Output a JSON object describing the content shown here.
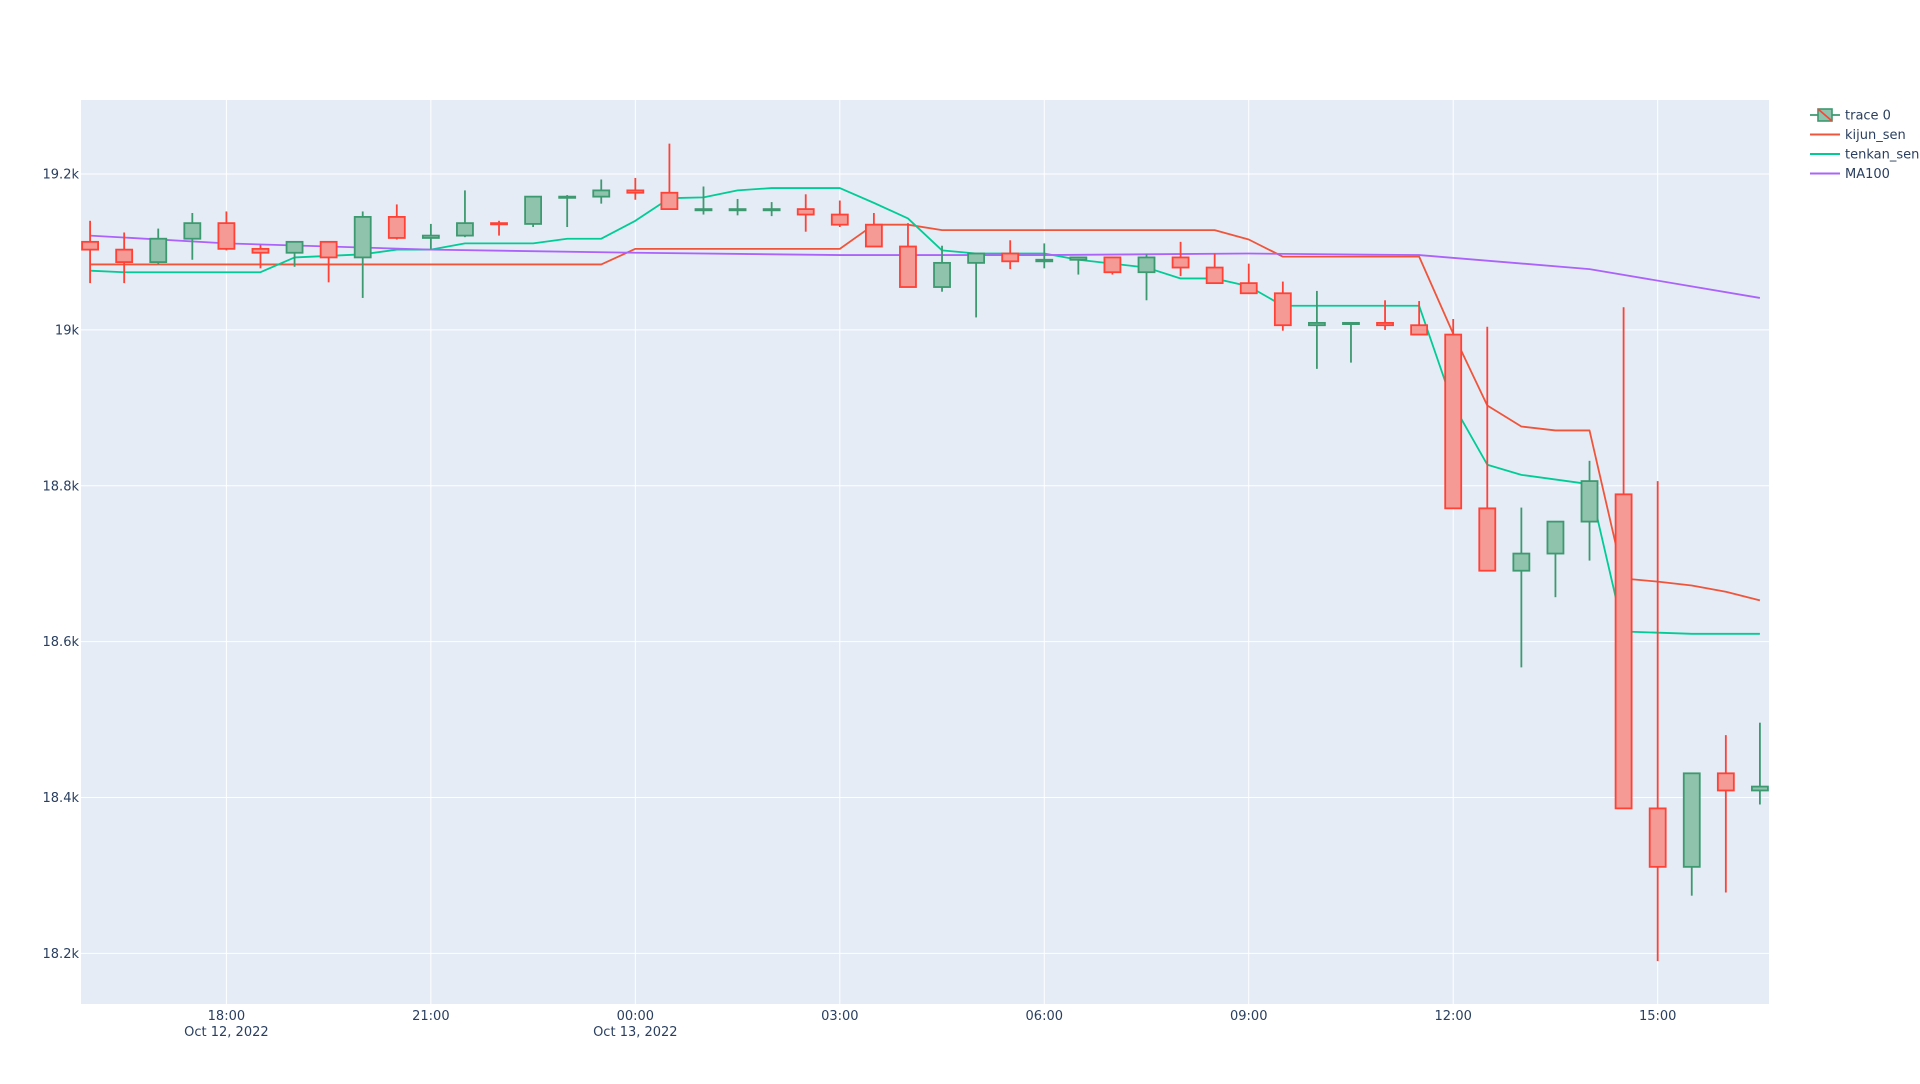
{
  "colors": {
    "plot_bg": "#e5ecf6",
    "grid": "#ffffff",
    "tick_text": "#2a3f5f",
    "increasing_line": "#3d9970",
    "increasing_fill": "#8fc3ac",
    "decreasing_line": "#ff4136",
    "decreasing_fill": "#f59a95",
    "kijun": "#ef553b",
    "tenkan": "#00cc96",
    "ma100": "#ab63fa"
  },
  "chart_data": {
    "type": "candlestick",
    "title": "",
    "xlabel": "",
    "ylabel": "",
    "x_range": [
      "2022-10-12T15:52",
      "2022-10-13T16:38"
    ],
    "ylim": [
      18135,
      19295
    ],
    "grid": true,
    "legend_position": "top-right",
    "x_ticks": [
      {
        "x": "2022-10-12T18:00",
        "label": "18:00",
        "sub": "Oct 12, 2022"
      },
      {
        "x": "2022-10-12T21:00",
        "label": "21:00",
        "sub": ""
      },
      {
        "x": "2022-10-13T00:00",
        "label": "00:00",
        "sub": "Oct 13, 2022"
      },
      {
        "x": "2022-10-13T03:00",
        "label": "03:00",
        "sub": ""
      },
      {
        "x": "2022-10-13T06:00",
        "label": "06:00",
        "sub": ""
      },
      {
        "x": "2022-10-13T09:00",
        "label": "09:00",
        "sub": ""
      },
      {
        "x": "2022-10-13T12:00",
        "label": "12:00",
        "sub": ""
      },
      {
        "x": "2022-10-13T15:00",
        "label": "15:00",
        "sub": ""
      }
    ],
    "y_ticks": [
      {
        "value": 18200,
        "label": "18.2k"
      },
      {
        "value": 18400,
        "label": "18.4k"
      },
      {
        "value": 18600,
        "label": "18.6k"
      },
      {
        "value": 18800,
        "label": "18.8k"
      },
      {
        "value": 19000,
        "label": "19k"
      },
      {
        "value": 19200,
        "label": "19.2k"
      }
    ],
    "candles": {
      "name": "trace 0",
      "x": [
        "2022-10-12T16:00",
        "2022-10-12T16:30",
        "2022-10-12T17:00",
        "2022-10-12T17:30",
        "2022-10-12T18:00",
        "2022-10-12T18:30",
        "2022-10-12T19:00",
        "2022-10-12T19:30",
        "2022-10-12T20:00",
        "2022-10-12T20:30",
        "2022-10-12T21:00",
        "2022-10-12T21:30",
        "2022-10-12T22:00",
        "2022-10-12T22:30",
        "2022-10-12T23:00",
        "2022-10-12T23:30",
        "2022-10-13T00:00",
        "2022-10-13T00:30",
        "2022-10-13T01:00",
        "2022-10-13T01:30",
        "2022-10-13T02:00",
        "2022-10-13T02:30",
        "2022-10-13T03:00",
        "2022-10-13T03:30",
        "2022-10-13T04:00",
        "2022-10-13T04:30",
        "2022-10-13T05:00",
        "2022-10-13T05:30",
        "2022-10-13T06:00",
        "2022-10-13T06:30",
        "2022-10-13T07:00",
        "2022-10-13T07:30",
        "2022-10-13T08:00",
        "2022-10-13T08:30",
        "2022-10-13T09:00",
        "2022-10-13T09:30",
        "2022-10-13T10:00",
        "2022-10-13T10:30",
        "2022-10-13T11:00",
        "2022-10-13T11:30",
        "2022-10-13T12:00",
        "2022-10-13T12:30",
        "2022-10-13T13:00",
        "2022-10-13T13:30",
        "2022-10-13T14:00",
        "2022-10-13T14:30",
        "2022-10-13T15:00",
        "2022-10-13T15:30",
        "2022-10-13T16:00",
        "2022-10-13T16:30"
      ],
      "open": [
        19113,
        19103,
        19087,
        19117,
        19137,
        19104,
        19099,
        19113,
        19093,
        19145,
        19118,
        19121,
        19137,
        19136,
        19171,
        19171,
        19179,
        19176,
        19155,
        19155,
        19155,
        19155,
        19148,
        19135,
        19107,
        19055,
        19086,
        19098,
        19088,
        19090,
        19093,
        19074,
        19093,
        19080,
        19060,
        19047,
        19006,
        19009,
        19009,
        19006,
        18994,
        18771,
        18691,
        18713,
        18754,
        18789,
        18386,
        18311,
        18431,
        18409
      ],
      "high": [
        19140,
        19125,
        19130,
        19150,
        19152,
        19109,
        19113,
        19114,
        19152,
        19161,
        19136,
        19179,
        19140,
        19157,
        19173,
        19193,
        19195,
        19239,
        19184,
        19168,
        19164,
        19174,
        19166,
        19150,
        19137,
        19108,
        19085,
        19115,
        19111,
        19094,
        19094,
        19097,
        19113,
        19098,
        19085,
        19062,
        19050,
        19008,
        19038,
        19037,
        19014,
        19004,
        18772,
        18728,
        18832,
        19029,
        18806,
        18386,
        18480,
        18496
      ],
      "low": [
        19060,
        19060,
        19084,
        19090,
        19102,
        19079,
        19081,
        19061,
        19041,
        19116,
        19104,
        19119,
        19121,
        19132,
        19132,
        19162,
        19167,
        19175,
        19148,
        19147,
        19146,
        19126,
        19132,
        19128,
        19092,
        19049,
        19016,
        19078,
        19079,
        19071,
        19071,
        19038,
        19069,
        19080,
        19046,
        18999,
        18950,
        18958,
        19000,
        19000,
        18975,
        18741,
        18567,
        18657,
        18704,
        18655,
        18190,
        18274,
        18278,
        18391
      ],
      "close": [
        19103,
        19087,
        19117,
        19137,
        19104,
        19099,
        19113,
        19093,
        19145,
        19118,
        19121,
        19137,
        19136,
        19171,
        19171,
        19179,
        19176,
        19155,
        19155,
        19155,
        19155,
        19148,
        19135,
        19107,
        19055,
        19086,
        19098,
        19088,
        19090,
        19093,
        19074,
        19093,
        19080,
        19060,
        19047,
        19006,
        19009,
        19009,
        19006,
        18994,
        18771,
        18691,
        18713,
        18754,
        18806,
        18386,
        18311,
        18431,
        18409,
        18414
      ]
    },
    "series": [
      {
        "name": "kijun_sen",
        "x": [
          "2022-10-12T16:00",
          "2022-10-12T23:30",
          "2022-10-13T00:00",
          "2022-10-13T03:00",
          "2022-10-13T03:30",
          "2022-10-13T04:00",
          "2022-10-13T04:30",
          "2022-10-13T08:30",
          "2022-10-13T09:00",
          "2022-10-13T09:30",
          "2022-10-13T11:30",
          "2022-10-13T12:00",
          "2022-10-13T12:30",
          "2022-10-13T13:00",
          "2022-10-13T13:30",
          "2022-10-13T14:00",
          "2022-10-13T14:30",
          "2022-10-13T15:00",
          "2022-10-13T15:30",
          "2022-10-13T16:00",
          "2022-10-13T16:30"
        ],
        "values": [
          19084,
          19084,
          19104,
          19104,
          19135,
          19135,
          19128,
          19128,
          19116,
          19094,
          19094,
          18995,
          18903,
          18876,
          18871,
          18871,
          18681,
          18677,
          18672,
          18664,
          18653
        ]
      },
      {
        "name": "tenkan_sen",
        "x": [
          "2022-10-12T16:00",
          "2022-10-12T16:30",
          "2022-10-12T18:30",
          "2022-10-12T19:00",
          "2022-10-12T20:00",
          "2022-10-12T20:30",
          "2022-10-12T21:00",
          "2022-10-12T21:30",
          "2022-10-12T22:00",
          "2022-10-12T22:30",
          "2022-10-12T23:00",
          "2022-10-12T23:30",
          "2022-10-13T00:00",
          "2022-10-13T00:30",
          "2022-10-13T01:00",
          "2022-10-13T01:30",
          "2022-10-13T02:00",
          "2022-10-13T03:00",
          "2022-10-13T03:30",
          "2022-10-13T04:00",
          "2022-10-13T04:30",
          "2022-10-13T05:00",
          "2022-10-13T06:00",
          "2022-10-13T06:30",
          "2022-10-13T07:30",
          "2022-10-13T08:00",
          "2022-10-13T08:30",
          "2022-10-13T09:00",
          "2022-10-13T09:30",
          "2022-10-13T11:30",
          "2022-10-13T12:00",
          "2022-10-13T12:30",
          "2022-10-13T13:00",
          "2022-10-13T14:00",
          "2022-10-13T14:30",
          "2022-10-13T15:30",
          "2022-10-13T16:00",
          "2022-10-13T16:30"
        ],
        "values": [
          19076,
          19074,
          19074,
          19093,
          19097,
          19103,
          19103,
          19111,
          19111,
          19111,
          19117,
          19117,
          19140,
          19169,
          19170,
          19179,
          19182,
          19182,
          19163,
          19143,
          19102,
          19098,
          19098,
          19090,
          19080,
          19066,
          19066,
          19056,
          19031,
          19031,
          18904,
          18827,
          18814,
          18802,
          18613,
          18610,
          18610,
          18610
        ]
      },
      {
        "name": "MA100",
        "x": [
          "2022-10-12T16:00",
          "2022-10-12T18:00",
          "2022-10-12T21:00",
          "2022-10-13T00:00",
          "2022-10-13T03:00",
          "2022-10-13T06:00",
          "2022-10-13T09:00",
          "2022-10-13T11:30",
          "2022-10-13T14:00",
          "2022-10-13T16:30"
        ],
        "values": [
          19121,
          19111,
          19103,
          19099,
          19096,
          19096,
          19098,
          19096,
          19078,
          19041
        ]
      }
    ]
  }
}
